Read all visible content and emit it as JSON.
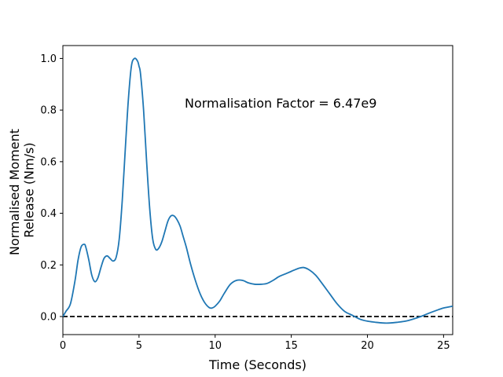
{
  "chart_data": {
    "type": "line",
    "title": "",
    "xlabel": "Time (Seconds)",
    "ylabel_lines": [
      "Normalised Moment",
      "Release (Nm/s)"
    ],
    "xlim": [
      0,
      25.6
    ],
    "ylim": [
      -0.07,
      1.05
    ],
    "xticks": [
      0,
      5,
      10,
      15,
      20,
      25
    ],
    "yticks": [
      0.0,
      0.2,
      0.4,
      0.6,
      0.8,
      1.0
    ],
    "ytick_labels": [
      "0.0",
      "0.2",
      "0.4",
      "0.6",
      "0.8",
      "1.0"
    ],
    "grid": false,
    "annotation": {
      "text": "Normalisation Factor = 6.47e9",
      "x": 8.0,
      "y": 0.81
    },
    "reference_line": {
      "y": 0.0,
      "color": "#000000",
      "style": "dashed"
    },
    "series": [
      {
        "color": "#1f77b4",
        "x": [
          0,
          0.2,
          0.5,
          0.8,
          1.0,
          1.2,
          1.4,
          1.5,
          1.7,
          1.9,
          2.1,
          2.3,
          2.5,
          2.7,
          2.9,
          3.1,
          3.3,
          3.5,
          3.7,
          3.9,
          4.1,
          4.3,
          4.5,
          4.7,
          4.9,
          5.0,
          5.1,
          5.3,
          5.5,
          5.7,
          5.9,
          6.1,
          6.3,
          6.5,
          6.7,
          6.9,
          7.1,
          7.3,
          7.5,
          7.7,
          7.9,
          8.1,
          8.4,
          8.7,
          9.0,
          9.3,
          9.6,
          9.8,
          10.0,
          10.3,
          10.6,
          11.0,
          11.4,
          11.8,
          12.2,
          12.6,
          13.0,
          13.4,
          13.8,
          14.2,
          14.6,
          15.0,
          15.4,
          15.8,
          16.2,
          16.6,
          17.0,
          17.5,
          18.0,
          18.5,
          19.0,
          19.5,
          20.0,
          20.5,
          21.0,
          21.5,
          22.0,
          22.5,
          23.0,
          23.5,
          24.0,
          24.5,
          25.0,
          25.6
        ],
        "y": [
          0.0,
          0.02,
          0.05,
          0.14,
          0.22,
          0.27,
          0.28,
          0.27,
          0.22,
          0.16,
          0.135,
          0.15,
          0.19,
          0.225,
          0.235,
          0.225,
          0.215,
          0.23,
          0.3,
          0.45,
          0.65,
          0.84,
          0.97,
          1.0,
          0.99,
          0.97,
          0.94,
          0.8,
          0.6,
          0.42,
          0.3,
          0.26,
          0.265,
          0.29,
          0.33,
          0.37,
          0.39,
          0.39,
          0.375,
          0.35,
          0.31,
          0.27,
          0.2,
          0.14,
          0.09,
          0.055,
          0.035,
          0.033,
          0.04,
          0.06,
          0.09,
          0.125,
          0.14,
          0.14,
          0.13,
          0.125,
          0.125,
          0.128,
          0.14,
          0.155,
          0.165,
          0.175,
          0.185,
          0.19,
          0.18,
          0.16,
          0.13,
          0.09,
          0.05,
          0.02,
          0.005,
          -0.01,
          -0.018,
          -0.022,
          -0.025,
          -0.025,
          -0.022,
          -0.018,
          -0.01,
          0.0,
          0.012,
          0.023,
          0.033,
          0.04
        ]
      }
    ]
  }
}
